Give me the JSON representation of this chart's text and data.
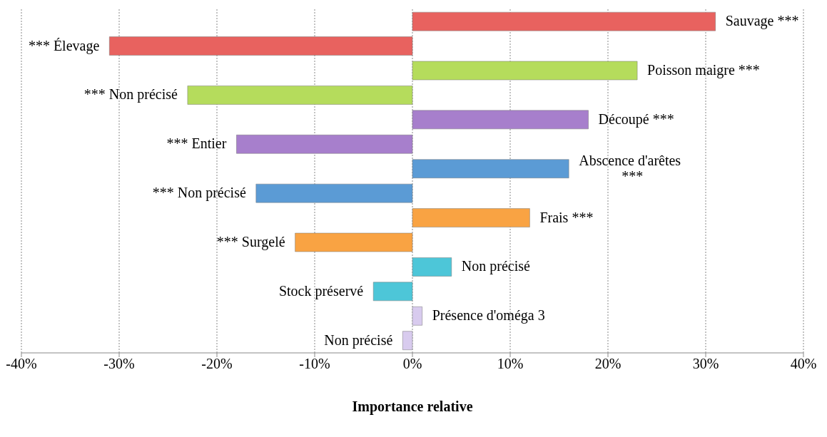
{
  "chart_data": {
    "type": "bar",
    "orientation": "horizontal",
    "xlabel": "Importance relative",
    "categories": [
      "Sauvage ***",
      "*** Élevage",
      "Poisson maigre ***",
      "*** Non précisé",
      "Découpé ***",
      "*** Entier",
      "Abscence d'arêtes ***",
      "*** Non précisé",
      "Frais ***",
      "*** Surgelé",
      "Non précisé",
      "Stock préservé",
      "Présence d'oméga 3",
      "Non précisé"
    ],
    "values": [
      31,
      -31,
      23,
      -23,
      18,
      -18,
      16,
      -16,
      12,
      -12,
      4,
      -4,
      1,
      -1
    ],
    "colors": [
      "#e8625f",
      "#e8625f",
      "#b5dc5c",
      "#b5dc5c",
      "#a77fcc",
      "#a77fcc",
      "#5b9bd5",
      "#5b9bd5",
      "#f9a343",
      "#f9a343",
      "#4dc6d8",
      "#4dc6d8",
      "#d8cbee",
      "#d8cbee"
    ],
    "xlim": [
      -40,
      40
    ],
    "xticks": [
      {
        "value": -40,
        "label": "-40%"
      },
      {
        "value": -30,
        "label": "-30%"
      },
      {
        "value": -20,
        "label": "-20%"
      },
      {
        "value": -10,
        "label": "-10%"
      },
      {
        "value": 0,
        "label": "0%"
      },
      {
        "value": 10,
        "label": "10%"
      },
      {
        "value": 20,
        "label": "20%"
      },
      {
        "value": 30,
        "label": "30%"
      },
      {
        "value": 40,
        "label": "40%"
      }
    ],
    "grid": "x",
    "tick_labels": "x"
  }
}
